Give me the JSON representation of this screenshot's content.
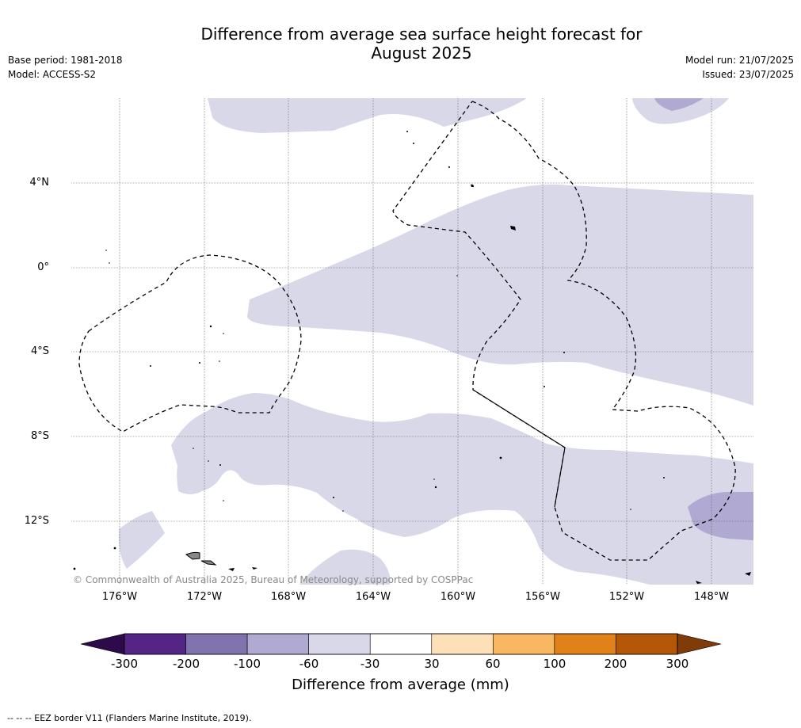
{
  "header": {
    "title_line1": "Difference from average sea surface height forecast for",
    "title_line2": "August 2025",
    "base_period": "Base period: 1981-2018",
    "model": "Model: ACCESS-S2",
    "model_run": "Model run: 21/07/2025",
    "issued": "Issued: 23/07/2025"
  },
  "map": {
    "latitude_labels": [
      "4°N",
      "0°",
      "4°S",
      "8°S",
      "12°S"
    ],
    "longitude_labels": [
      "176°W",
      "172°W",
      "168°W",
      "164°W",
      "160°W",
      "156°W",
      "152°W",
      "148°W"
    ],
    "copyright": "© Commonwealth of Australia 2025, Bureau of Meteorology, supported by COSPPac",
    "anomaly_colors": {
      "-60_to_-30": "#d8d8e9",
      "-100_to_-60": "#b0a9d2"
    }
  },
  "colorbar": {
    "ticks": [
      "-300",
      "-200",
      "-100",
      "-60",
      "-30",
      "30",
      "60",
      "100",
      "200",
      "300"
    ],
    "label": "Difference from average (mm)",
    "segment_colors": [
      "#552585",
      "#8173ad",
      "#b0a9d2",
      "#d8d8e9",
      "#ffffff",
      "#fde0b7",
      "#f9b762",
      "#e08119",
      "#b35806"
    ],
    "extend_low_color": "#2d0a4a",
    "extend_high_color": "#7f3b08"
  },
  "footnote": "--  --  -- EEZ border V11 (Flanders Marine Institute, 2019)."
}
